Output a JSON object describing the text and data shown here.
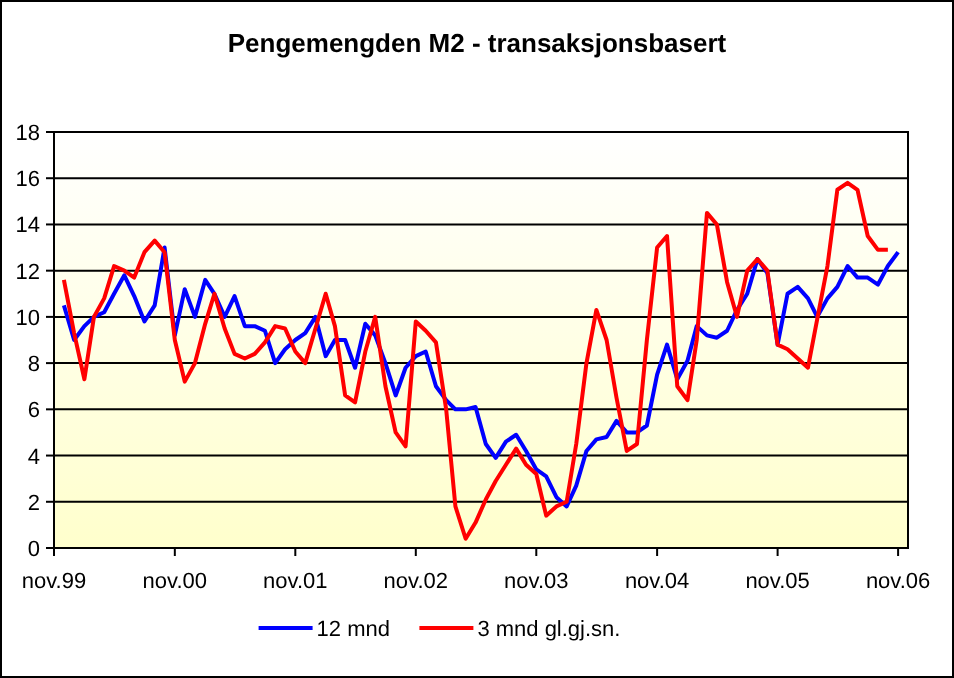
{
  "chart_data": {
    "type": "line",
    "title": "Pengemengden M2 - transaksjonsbasert",
    "x": [
      "1999-12",
      "2000-01",
      "2000-02",
      "2000-03",
      "2000-04",
      "2000-05",
      "2000-06",
      "2000-07",
      "2000-08",
      "2000-09",
      "2000-10",
      "2000-11",
      "2000-12",
      "2001-01",
      "2001-02",
      "2001-03",
      "2001-04",
      "2001-05",
      "2001-06",
      "2001-07",
      "2001-08",
      "2001-09",
      "2001-10",
      "2001-11",
      "2001-12",
      "2002-01",
      "2002-02",
      "2002-03",
      "2002-04",
      "2002-05",
      "2002-06",
      "2002-07",
      "2002-08",
      "2002-09",
      "2002-10",
      "2002-11",
      "2002-12",
      "2003-01",
      "2003-02",
      "2003-03",
      "2003-04",
      "2003-05",
      "2003-06",
      "2003-07",
      "2003-08",
      "2003-09",
      "2003-10",
      "2003-11",
      "2003-12",
      "2004-01",
      "2004-02",
      "2004-03",
      "2004-04",
      "2004-05",
      "2004-06",
      "2004-07",
      "2004-08",
      "2004-09",
      "2004-10",
      "2004-11",
      "2004-12",
      "2005-01",
      "2005-02",
      "2005-03",
      "2005-04",
      "2005-05",
      "2005-06",
      "2005-07",
      "2005-08",
      "2005-09",
      "2005-10",
      "2005-11",
      "2005-12",
      "2006-01",
      "2006-02",
      "2006-03",
      "2006-04",
      "2006-05",
      "2006-06",
      "2006-07",
      "2006-08",
      "2006-09",
      "2006-10",
      "2006-11"
    ],
    "series": [
      {
        "name": "12 mnd",
        "color": "#0000ff",
        "values": [
          10.5,
          9.0,
          9.6,
          10.0,
          10.2,
          11.0,
          11.8,
          10.9,
          9.8,
          10.5,
          13.0,
          9.2,
          11.2,
          10.0,
          11.6,
          11.0,
          10.0,
          10.9,
          9.6,
          9.6,
          9.4,
          8.0,
          8.6,
          9.0,
          9.3,
          10.0,
          8.3,
          9.0,
          9.0,
          7.8,
          9.7,
          9.2,
          8.0,
          6.6,
          7.8,
          8.3,
          8.5,
          7.0,
          6.4,
          6.0,
          6.0,
          6.1,
          4.5,
          3.9,
          4.6,
          4.9,
          4.2,
          3.4,
          3.1,
          2.2,
          1.8,
          2.7,
          4.2,
          4.7,
          4.8,
          5.5,
          5.0,
          5.0,
          5.3,
          7.5,
          8.8,
          7.3,
          8.1,
          9.6,
          9.2,
          9.1,
          9.4,
          10.3,
          11.0,
          12.5,
          11.9,
          8.8,
          11.0,
          11.3,
          10.8,
          10.0,
          10.8,
          11.3,
          12.2,
          11.7,
          11.7,
          11.4,
          12.2,
          12.8
        ]
      },
      {
        "name": "3 mnd gl.gj.sn.",
        "color": "#ff0000",
        "values": [
          11.6,
          9.3,
          7.3,
          10.0,
          10.8,
          12.2,
          12.0,
          11.7,
          12.8,
          13.3,
          12.8,
          9.0,
          7.2,
          8.0,
          9.7,
          11.0,
          9.5,
          8.4,
          8.2,
          8.4,
          8.9,
          9.6,
          9.5,
          8.5,
          8.0,
          9.5,
          11.0,
          9.6,
          6.6,
          6.3,
          8.5,
          10.0,
          7.0,
          5.0,
          4.4,
          9.8,
          9.4,
          8.9,
          6.0,
          1.8,
          0.4,
          1.1,
          2.1,
          2.9,
          3.6,
          4.3,
          3.6,
          3.2,
          1.4,
          1.8,
          2.0,
          4.5,
          8.0,
          10.3,
          9.0,
          6.5,
          4.2,
          4.5,
          9.0,
          13.0,
          13.5,
          7.0,
          6.4,
          9.0,
          14.5,
          14.0,
          11.5,
          10.0,
          12.0,
          12.5,
          12.0,
          8.8,
          8.6,
          8.2,
          7.8,
          9.9,
          12.2,
          15.5,
          15.8,
          15.5,
          13.5,
          12.9,
          12.9,
          null
        ]
      }
    ],
    "xlim": [
      "1999-11",
      "2006-12"
    ],
    "xticks": [
      {
        "value": "1999-11",
        "label": "nov.99"
      },
      {
        "value": "2000-11",
        "label": "nov.00"
      },
      {
        "value": "2001-11",
        "label": "nov.01"
      },
      {
        "value": "2002-11",
        "label": "nov.02"
      },
      {
        "value": "2003-11",
        "label": "nov.03"
      },
      {
        "value": "2004-11",
        "label": "nov.04"
      },
      {
        "value": "2005-11",
        "label": "nov.05"
      },
      {
        "value": "2006-11",
        "label": "nov.06"
      }
    ],
    "ylim": [
      0,
      18
    ],
    "yticks": [
      0,
      2,
      4,
      6,
      8,
      10,
      12,
      14,
      16,
      18
    ],
    "grid": "y",
    "legend": "bottom",
    "marker": "none",
    "line_style": "solid"
  }
}
